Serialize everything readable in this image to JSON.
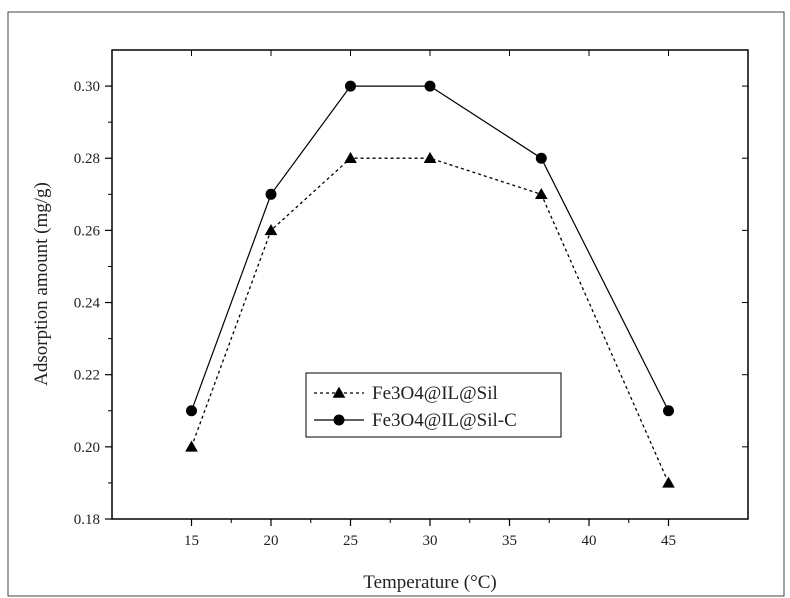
{
  "chart_data": {
    "type": "line",
    "x": [
      15,
      20,
      25,
      30,
      37,
      45
    ],
    "xlim": [
      10,
      50
    ],
    "ylim": [
      0.18,
      0.31
    ],
    "xticks": [
      15,
      20,
      25,
      30,
      35,
      40,
      45
    ],
    "yticks": [
      0.18,
      0.2,
      0.22,
      0.24,
      0.26,
      0.28,
      0.3
    ],
    "ytick_labels": [
      "0.18",
      "0.20",
      "0.22",
      "0.24",
      "0.26",
      "0.28",
      "0.30"
    ],
    "xlabel": "Temperature (°C)",
    "ylabel": "Adsorption amount (mg/g)",
    "grid": false,
    "legend_position": "lower-center",
    "series": [
      {
        "name": "Fe3O4@IL@Sil",
        "marker": "triangle",
        "line_style": "dotted",
        "color": "#000000",
        "values": [
          0.2,
          0.26,
          0.28,
          0.28,
          0.27,
          0.19
        ]
      },
      {
        "name": "Fe3O4@IL@Sil-C",
        "marker": "circle",
        "line_style": "solid",
        "color": "#000000",
        "values": [
          0.21,
          0.27,
          0.3,
          0.3,
          0.28,
          0.21
        ]
      }
    ]
  }
}
